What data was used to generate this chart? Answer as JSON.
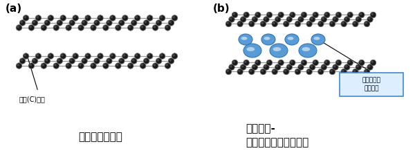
{
  "bg_color": "#ffffff",
  "label_a": "(a)",
  "label_b": "(b)",
  "title_a": "二層グラフェン",
  "title_b": "金属挿入-\n二層グラフェン化合物",
  "carbon_label": "炭素(C)原子",
  "metal_label": "挿入された\n金属原子",
  "carbon_color": "#1a1a1a",
  "carbon_edge": "#666666",
  "line_color": "#999999",
  "metal_color_main": "#5b9bd5",
  "metal_color_light": "#a8c8e8",
  "metal_color_dark": "#2e75b6",
  "metal_highlight": "#d6e8f7",
  "box_edge": "#4488cc",
  "box_face": "#ddeeff"
}
